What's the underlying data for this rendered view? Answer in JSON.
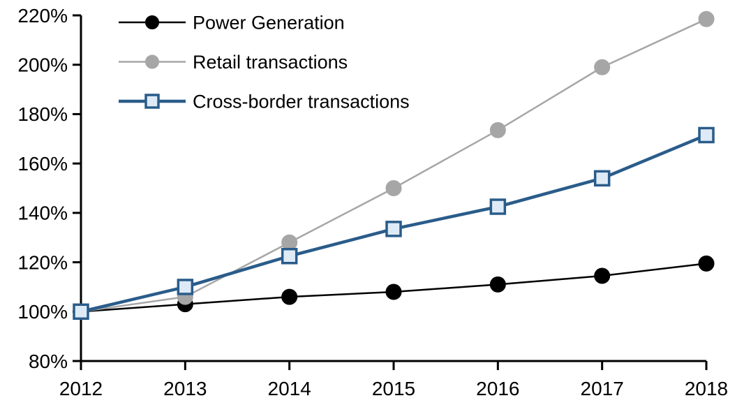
{
  "chart_data": {
    "type": "line",
    "title": "",
    "x_labels": [
      "2012",
      "2013",
      "2014",
      "2015",
      "2016",
      "2017",
      "2018"
    ],
    "x_values": [
      2012,
      2013,
      2014,
      2015,
      2016,
      2017,
      2018
    ],
    "y_axis": {
      "min": 80,
      "max": 220,
      "step": 20,
      "unit": "%",
      "tick_labels": [
        "80%",
        "100%",
        "120%",
        "140%",
        "160%",
        "180%",
        "200%",
        "220%"
      ]
    },
    "grid": false,
    "legend_position": "top-left",
    "axis_color": "#000000",
    "background": "#ffffff",
    "series": [
      {
        "name": "Power Generation",
        "line_color": "#000000",
        "line_width": 2.5,
        "marker": "circle",
        "marker_fill": "#000000",
        "marker_stroke": "#000000",
        "values": [
          100,
          103,
          106,
          108,
          111,
          114.5,
          119.5
        ]
      },
      {
        "name": "Retail transactions",
        "line_color": "#A6A6A6",
        "line_width": 2.5,
        "marker": "circle",
        "marker_fill": "#A6A6A6",
        "marker_stroke": "#A6A6A6",
        "values": [
          100,
          106,
          128,
          150,
          173.5,
          199,
          218.5
        ]
      },
      {
        "name": "Cross-border transactions",
        "line_color": "#2A5C8A",
        "line_width": 4.5,
        "marker": "square",
        "marker_fill": "#DEEBF7",
        "marker_stroke": "#2A5C8A",
        "values": [
          100,
          110,
          122.5,
          133.5,
          142.5,
          154,
          171.5
        ]
      }
    ]
  }
}
